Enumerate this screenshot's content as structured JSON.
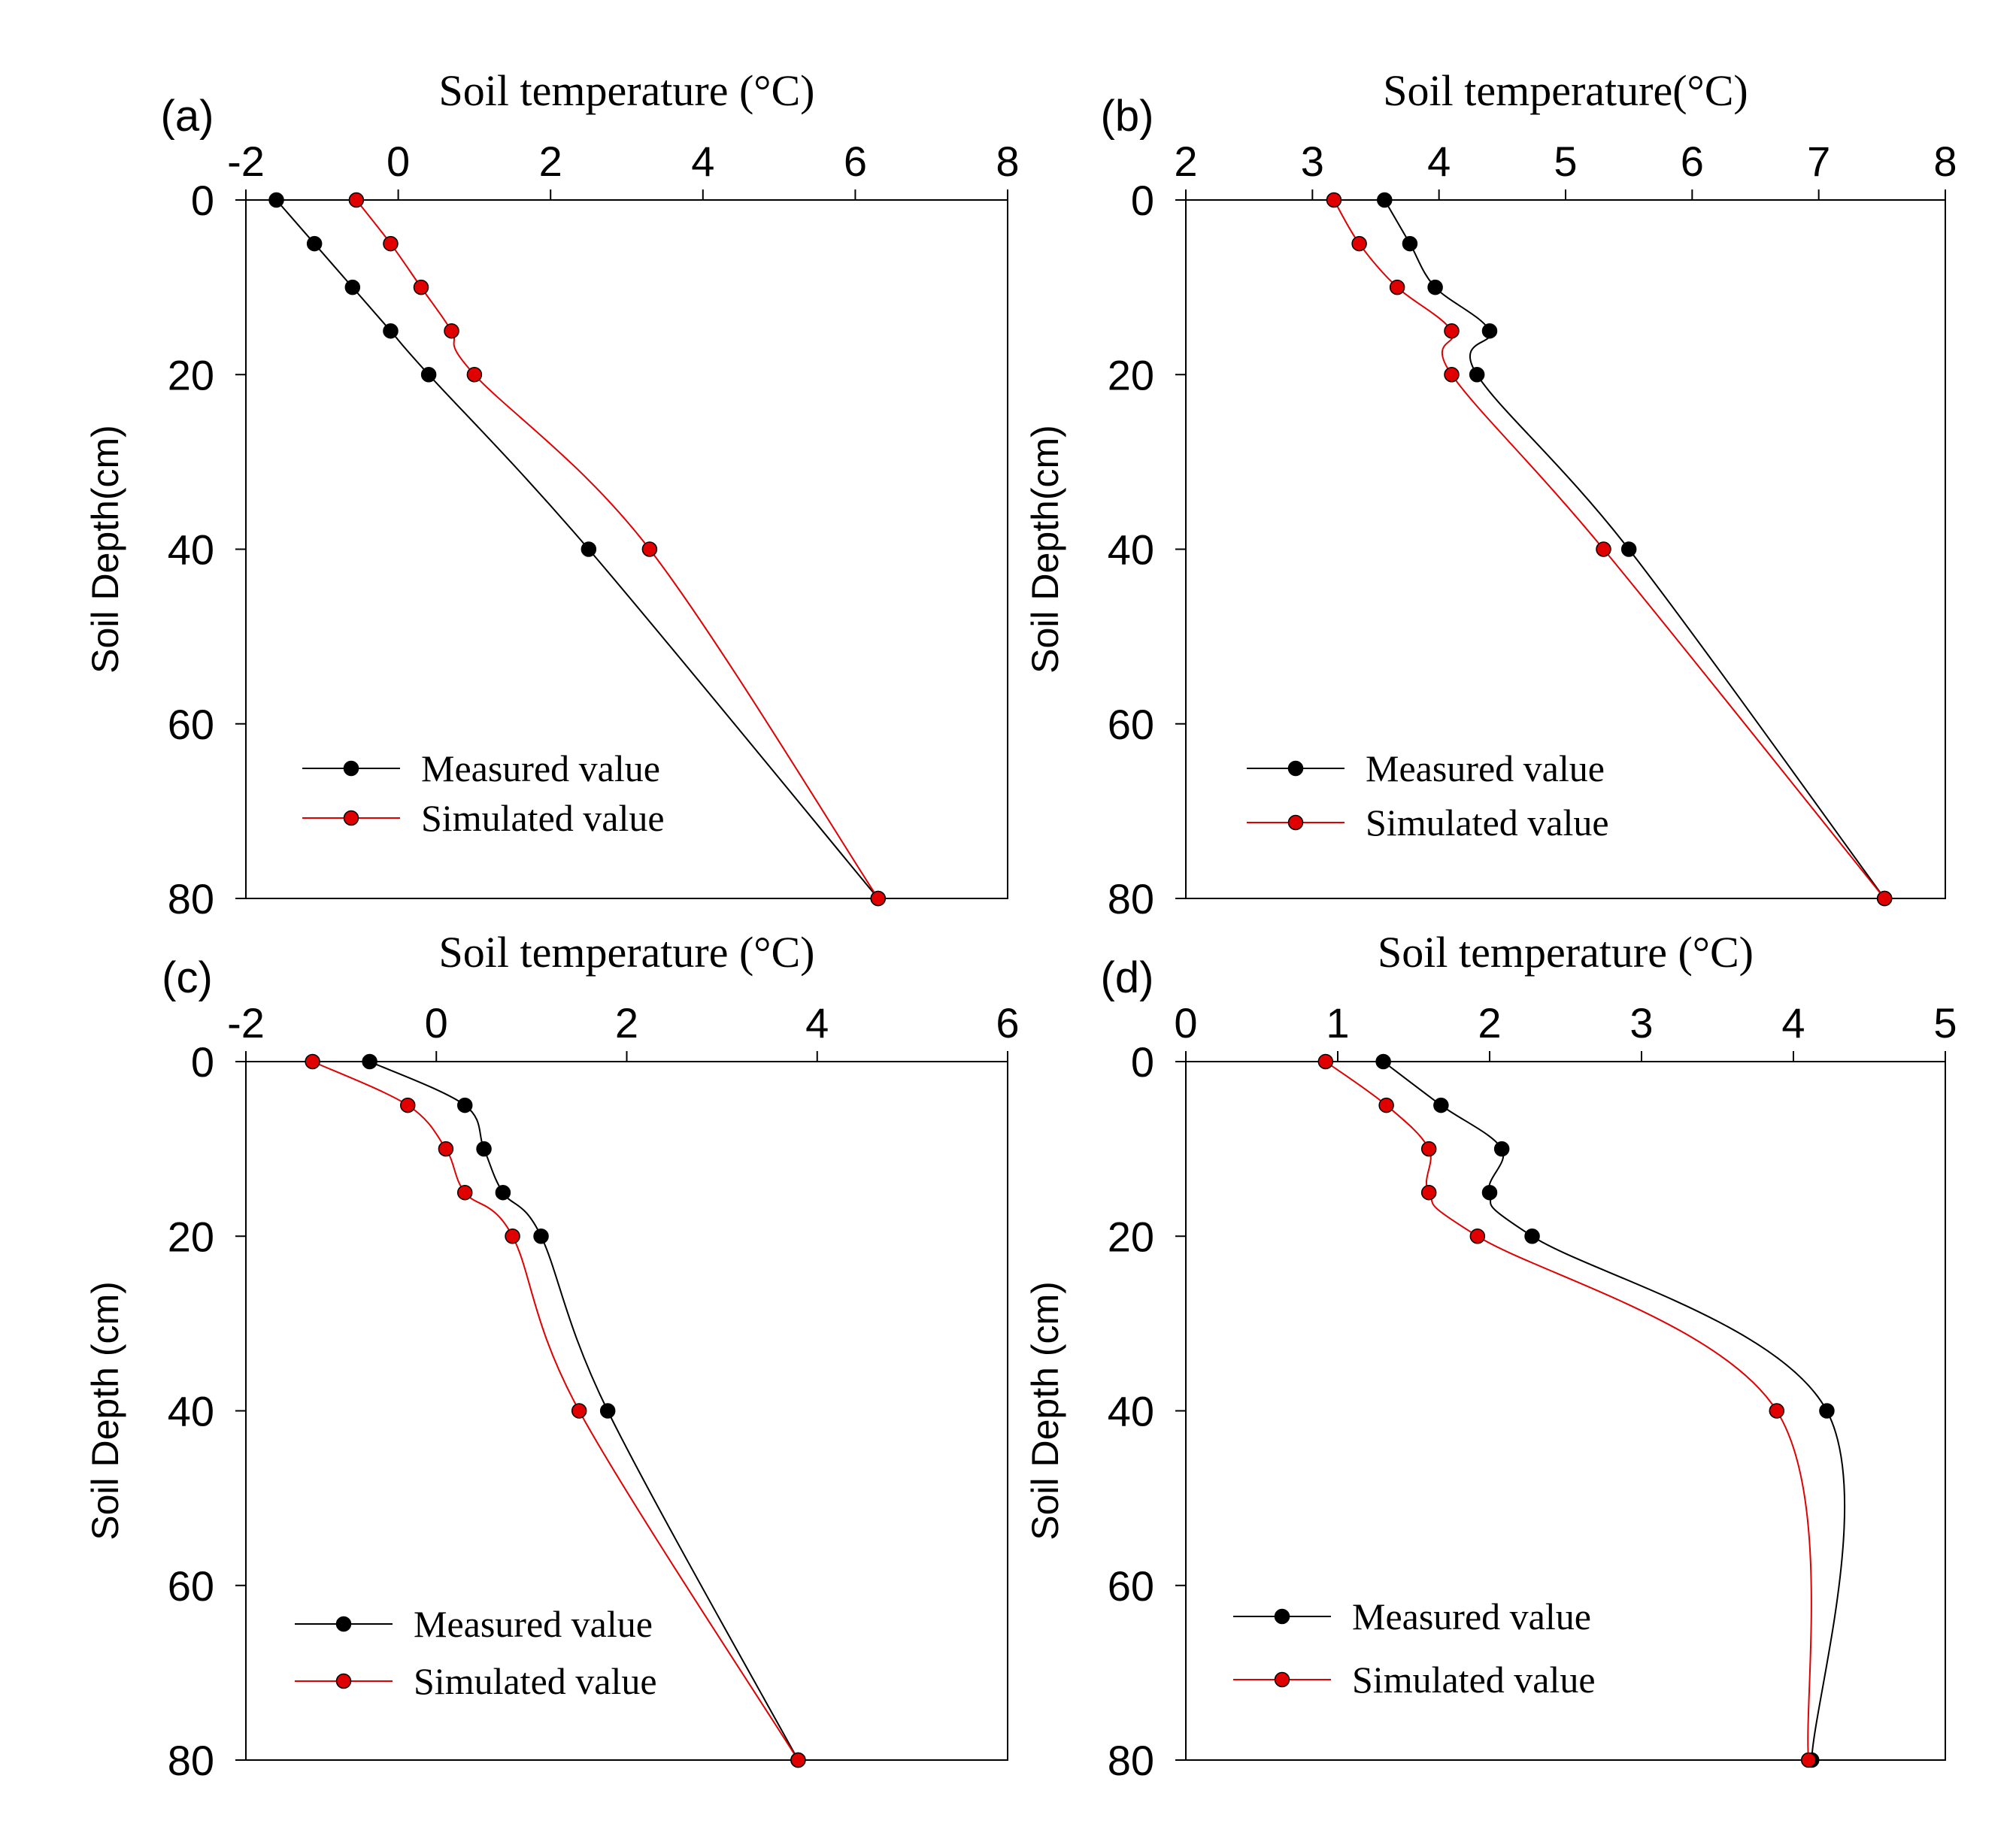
{
  "chart_data": [
    {
      "id": "a",
      "type": "line",
      "panel_label": "(a)",
      "title": "Soil temperature (°C)",
      "xlabel": "Soil temperature (°C)",
      "ylabel": "Soil Depth(cm)",
      "xlim": [
        -2,
        8
      ],
      "xticks": [
        -2,
        0,
        2,
        4,
        6,
        8
      ],
      "ylim": [
        0,
        80
      ],
      "yticks": [
        0,
        20,
        40,
        60,
        80
      ],
      "y_inverted": true,
      "depth": [
        0,
        5,
        10,
        15,
        20,
        40,
        80
      ],
      "legend_position": "bottom-left",
      "series": [
        {
          "name": "Measured value",
          "color": "#000000",
          "values": [
            -1.6,
            -1.1,
            -0.6,
            -0.1,
            0.4,
            2.5,
            6.3
          ]
        },
        {
          "name": "Simulated value",
          "color": "#e00000",
          "values": [
            -0.55,
            -0.1,
            0.3,
            0.7,
            1.0,
            3.3,
            6.3
          ]
        }
      ]
    },
    {
      "id": "b",
      "type": "line",
      "panel_label": "(b)",
      "title": "Soil temperature(°C)",
      "xlabel": "Soil temperature(°C)",
      "ylabel": "Soil Depth(cm)",
      "xlim": [
        2,
        8
      ],
      "xticks": [
        2,
        3,
        4,
        5,
        6,
        7,
        8
      ],
      "ylim": [
        0,
        80
      ],
      "yticks": [
        0,
        20,
        40,
        60,
        80
      ],
      "y_inverted": true,
      "depth": [
        0,
        5,
        10,
        15,
        20,
        40,
        80
      ],
      "legend_position": "bottom-left",
      "series": [
        {
          "name": "Measured value",
          "color": "#000000",
          "values": [
            3.57,
            3.77,
            3.97,
            4.4,
            4.3,
            5.5,
            7.52
          ]
        },
        {
          "name": "Simulated value",
          "color": "#e00000",
          "values": [
            3.17,
            3.37,
            3.67,
            4.1,
            4.1,
            5.3,
            7.52
          ]
        }
      ]
    },
    {
      "id": "c",
      "type": "line",
      "panel_label": "(c)",
      "title": "Soil temperature (°C)",
      "xlabel": "Soil temperature (°C)",
      "ylabel": "Soil Depth (cm)",
      "xlim": [
        -2,
        6
      ],
      "xticks": [
        -2,
        0,
        2,
        4,
        6
      ],
      "ylim": [
        0,
        80
      ],
      "yticks": [
        0,
        20,
        40,
        60,
        80
      ],
      "y_inverted": true,
      "depth": [
        0,
        5,
        10,
        15,
        20,
        40,
        80
      ],
      "legend_position": "bottom-left",
      "series": [
        {
          "name": "Measured value",
          "color": "#000000",
          "values": [
            -0.7,
            0.3,
            0.5,
            0.7,
            1.1,
            1.8,
            3.8
          ]
        },
        {
          "name": "Simulated value",
          "color": "#e00000",
          "values": [
            -1.3,
            -0.3,
            0.1,
            0.3,
            0.8,
            1.5,
            3.8
          ]
        }
      ]
    },
    {
      "id": "d",
      "type": "line",
      "panel_label": "(d)",
      "title": "Soil temperature (°C)",
      "xlabel": "Soil temperature (°C)",
      "ylabel": "Soil Depth (cm)",
      "xlim": [
        0,
        5
      ],
      "xticks": [
        0,
        1,
        2,
        3,
        4,
        5
      ],
      "ylim": [
        0,
        80
      ],
      "yticks": [
        0,
        20,
        40,
        60,
        80
      ],
      "y_inverted": true,
      "depth": [
        0,
        5,
        10,
        15,
        20,
        40,
        80
      ],
      "legend_position": "bottom-left",
      "series": [
        {
          "name": "Measured value",
          "color": "#000000",
          "values": [
            1.3,
            1.68,
            2.08,
            2.0,
            2.28,
            4.22,
            4.12
          ]
        },
        {
          "name": "Simulated value",
          "color": "#e00000",
          "values": [
            0.92,
            1.32,
            1.6,
            1.6,
            1.92,
            3.89,
            4.1
          ]
        }
      ]
    }
  ]
}
